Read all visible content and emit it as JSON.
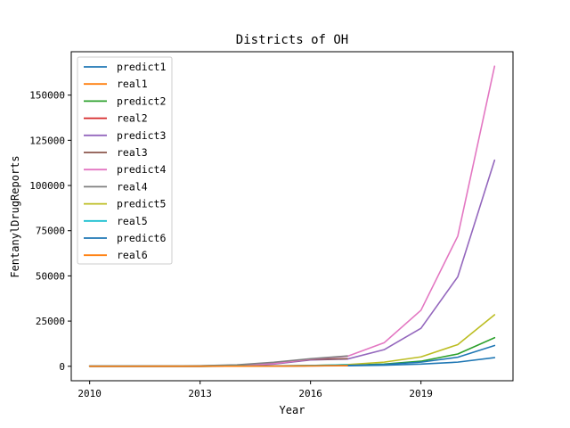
{
  "chart_data": {
    "type": "line",
    "title": "Districts of OH",
    "xlabel": "Year",
    "ylabel": "FentanylDrugReports",
    "xlim": [
      2009.5,
      2021.5
    ],
    "ylim": [
      -8000,
      174000
    ],
    "xticks": [
      2010,
      2013,
      2016,
      2019
    ],
    "yticks": [
      0,
      25000,
      50000,
      75000,
      100000,
      125000,
      150000
    ],
    "ytick_labels": [
      "0",
      "25000",
      "50000",
      "75000",
      "100000",
      "125000",
      "150000"
    ],
    "grid": false,
    "legend_position": "top-left",
    "x": [
      2010,
      2011,
      2012,
      2013,
      2014,
      2015,
      2016,
      2017,
      2018,
      2019,
      2020,
      2021
    ],
    "series": [
      {
        "name": "predict1",
        "color": "#1f77b4",
        "values": [
          0,
          0,
          0,
          0,
          50,
          100,
          200,
          300,
          600,
          1200,
          2300,
          4800
        ]
      },
      {
        "name": "real1",
        "color": "#ff7f0e",
        "values": [
          30,
          30,
          40,
          50,
          80,
          120,
          200,
          350,
          null,
          null,
          null,
          null
        ]
      },
      {
        "name": "predict2",
        "color": "#2ca02c",
        "values": [
          0,
          0,
          0,
          0,
          100,
          200,
          300,
          600,
          1200,
          2800,
          6800,
          15800
        ]
      },
      {
        "name": "real2",
        "color": "#d62728",
        "values": [
          40,
          40,
          50,
          60,
          100,
          200,
          300,
          500,
          null,
          null,
          null,
          null
        ]
      },
      {
        "name": "predict3",
        "color": "#9467bd",
        "values": [
          0,
          0,
          0,
          0,
          300,
          1200,
          3500,
          4000,
          9200,
          21000,
          49500,
          114000
        ]
      },
      {
        "name": "real3",
        "color": "#8c564b",
        "values": [
          100,
          100,
          150,
          250,
          600,
          1600,
          3800,
          4200,
          null,
          null,
          null,
          null
        ]
      },
      {
        "name": "predict4",
        "color": "#e377c2",
        "values": [
          0,
          0,
          0,
          0,
          400,
          1500,
          4000,
          5500,
          13000,
          31000,
          72000,
          166000
        ]
      },
      {
        "name": "real4",
        "color": "#7f7f7f",
        "values": [
          150,
          150,
          200,
          300,
          800,
          2200,
          4200,
          5700,
          null,
          null,
          null,
          null
        ]
      },
      {
        "name": "predict5",
        "color": "#bcbd22",
        "values": [
          0,
          0,
          0,
          0,
          100,
          200,
          400,
          900,
          2300,
          5200,
          12000,
          28500
        ]
      },
      {
        "name": "real5",
        "color": "#17becf",
        "values": [
          30,
          30,
          40,
          50,
          100,
          250,
          450,
          900,
          null,
          null,
          null,
          null
        ]
      },
      {
        "name": "predict6",
        "color": "#1f77b4",
        "values": [
          0,
          0,
          0,
          0,
          80,
          150,
          300,
          500,
          1000,
          2300,
          5000,
          11500
        ]
      },
      {
        "name": "real6",
        "color": "#ff7f0e",
        "values": [
          20,
          20,
          30,
          40,
          60,
          100,
          200,
          400,
          null,
          null,
          null,
          null
        ]
      }
    ]
  }
}
